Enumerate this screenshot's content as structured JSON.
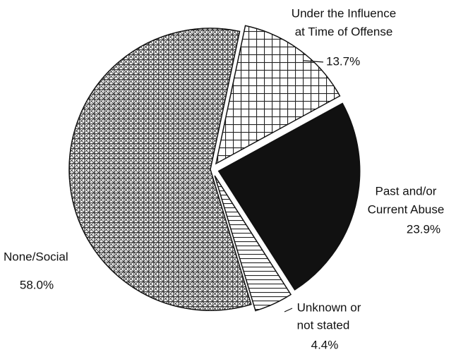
{
  "chart_data": {
    "type": "pie",
    "categories": [
      [
        "Under the Influence",
        "at Time of Offense"
      ],
      [
        "Past and/or",
        "Current Abuse"
      ],
      [
        "Unknown or",
        "not stated"
      ],
      [
        "None/Social"
      ]
    ],
    "values": [
      13.7,
      23.9,
      4.4,
      58.0
    ],
    "value_labels": [
      "13.7%",
      "23.9%",
      "4.4%",
      "58.0%"
    ],
    "colors": [
      "#ffffff",
      "#111111",
      "#ffffff",
      "#d8d8d8"
    ],
    "patterns": [
      "grid",
      "solid",
      "hlines",
      "dense"
    ]
  }
}
